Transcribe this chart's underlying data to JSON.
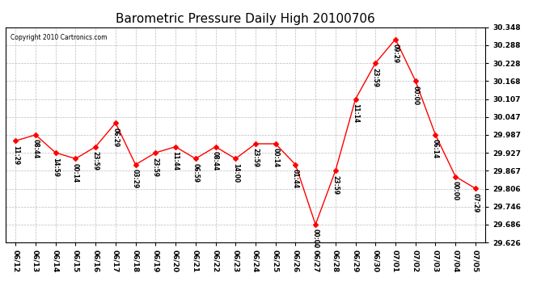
{
  "title": "Barometric Pressure Daily High 20100706",
  "copyright": "Copyright 2010 Cartronics.com",
  "x_labels": [
    "06/12",
    "06/13",
    "06/14",
    "06/15",
    "06/16",
    "06/17",
    "06/18",
    "06/19",
    "06/20",
    "06/21",
    "06/22",
    "06/23",
    "06/24",
    "06/25",
    "06/26",
    "06/27",
    "06/28",
    "06/29",
    "06/30",
    "07/01",
    "07/02",
    "07/03",
    "07/04",
    "07/05"
  ],
  "y_values": [
    29.967,
    29.987,
    29.927,
    29.907,
    29.947,
    30.027,
    29.887,
    29.927,
    29.947,
    29.907,
    29.947,
    29.907,
    29.957,
    29.957,
    29.887,
    29.686,
    29.867,
    30.107,
    30.228,
    30.308,
    30.168,
    29.987,
    29.847,
    29.807
  ],
  "point_labels": [
    "11:29",
    "08:44",
    "14:59",
    "00:14",
    "23:59",
    "06:29",
    "03:29",
    "23:59",
    "11:44",
    "06:59",
    "08:44",
    "14:00",
    "23:59",
    "00:14",
    "01:44",
    "00:00",
    "23:59",
    "11:14",
    "23:59",
    "09:29",
    "00:00",
    "06:14",
    "00:00",
    "07:29"
  ],
  "ylim_min": 29.626,
  "ylim_max": 30.348,
  "yticks": [
    29.626,
    29.686,
    29.746,
    29.806,
    29.867,
    29.927,
    29.987,
    30.047,
    30.107,
    30.168,
    30.228,
    30.288,
    30.348
  ],
  "line_color": "red",
  "marker_color": "red",
  "marker_size": 3,
  "bg_color": "#ffffff",
  "grid_color": "#bbbbbb",
  "title_fontsize": 11,
  "label_fontsize": 6.5,
  "point_label_fontsize": 5.5
}
